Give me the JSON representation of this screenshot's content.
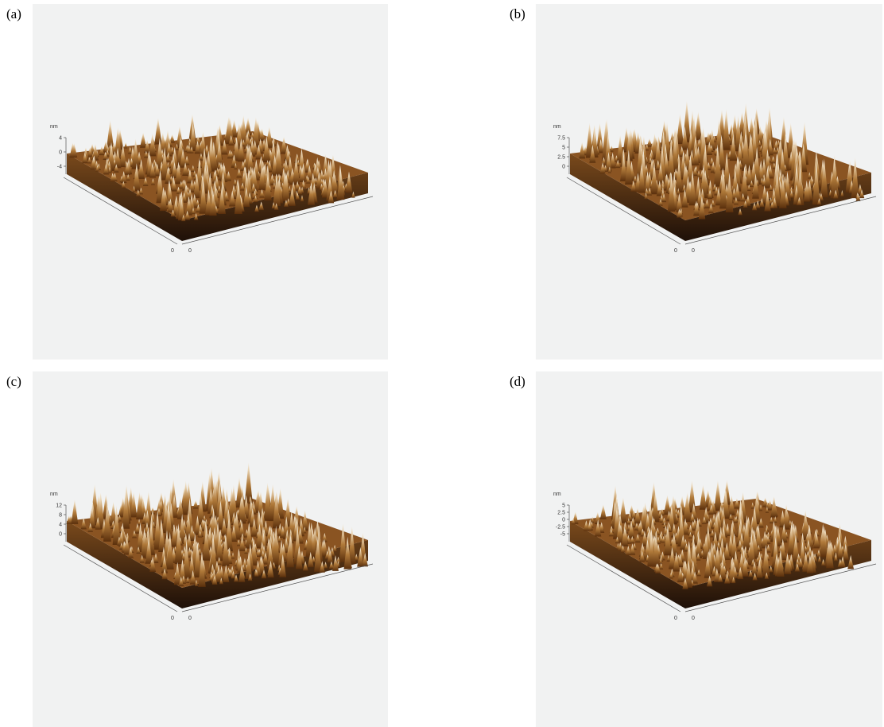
{
  "panels": [
    {
      "label": "(a)",
      "unit": "nm",
      "z_ticks": [
        "4",
        "0",
        "-4"
      ],
      "origin_labels": [
        "0",
        "0"
      ]
    },
    {
      "label": "(b)",
      "unit": "nm",
      "z_ticks": [
        "7.5",
        "5",
        "2.5",
        "0"
      ],
      "origin_labels": [
        "0",
        "0"
      ]
    },
    {
      "label": "(c)",
      "unit": "nm",
      "z_ticks": [
        "12",
        "8",
        "4",
        "0"
      ],
      "origin_labels": [
        "0",
        "0"
      ]
    },
    {
      "label": "(d)",
      "unit": "nm",
      "z_ticks": [
        "5",
        "2.5",
        "0",
        "-2.5",
        "-5"
      ],
      "origin_labels": [
        "0",
        "0"
      ]
    }
  ]
}
